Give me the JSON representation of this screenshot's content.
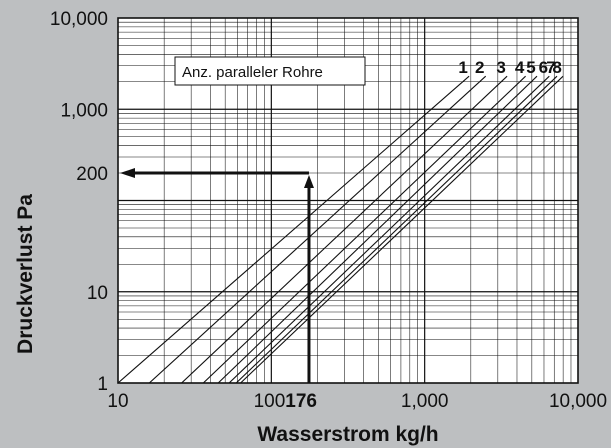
{
  "chart_data": {
    "type": "line",
    "xscale": "log",
    "yscale": "log",
    "xlim": [
      10,
      10000
    ],
    "ylim": [
      1,
      10000
    ],
    "xlabel": "Wasserstrom kg/h",
    "ylabel": "Druckverlust Pa",
    "grid": true,
    "x_ticks": [
      {
        "value": 10,
        "label": "10",
        "bold": false
      },
      {
        "value": 100,
        "label": "100",
        "bold": false
      },
      {
        "value": 176,
        "label": "176",
        "bold": true
      },
      {
        "value": 1000,
        "label": "1,000",
        "bold": false
      },
      {
        "value": 10000,
        "label": "10,000",
        "bold": false
      }
    ],
    "y_ticks": [
      {
        "value": 1,
        "label": "1"
      },
      {
        "value": 10,
        "label": "10"
      },
      {
        "value": 200,
        "label": "200"
      },
      {
        "value": 1000,
        "label": "1,000"
      },
      {
        "value": 10000,
        "label": "10,000"
      }
    ],
    "legend_title": "Anz. paralleler Rohre",
    "series": [
      {
        "name": "1",
        "x": [
          10,
          1950
        ],
        "y": [
          1,
          2300
        ]
      },
      {
        "name": "2",
        "x": [
          16,
          2500
        ],
        "y": [
          1,
          2300
        ]
      },
      {
        "name": "3",
        "x": [
          26,
          3450
        ],
        "y": [
          1,
          2300
        ]
      },
      {
        "name": "4",
        "x": [
          36,
          4550
        ],
        "y": [
          1,
          2300
        ]
      },
      {
        "name": "5",
        "x": [
          45,
          5400
        ],
        "y": [
          1,
          2300
        ]
      },
      {
        "name": "6",
        "x": [
          53,
          6500
        ],
        "y": [
          1,
          2300
        ]
      },
      {
        "name": "7",
        "x": [
          59,
          7300
        ],
        "y": [
          1,
          2300
        ]
      },
      {
        "name": "8",
        "x": [
          63,
          8000
        ],
        "y": [
          1,
          2300
        ]
      }
    ],
    "annotation": {
      "x": 176,
      "y": 200
    }
  }
}
